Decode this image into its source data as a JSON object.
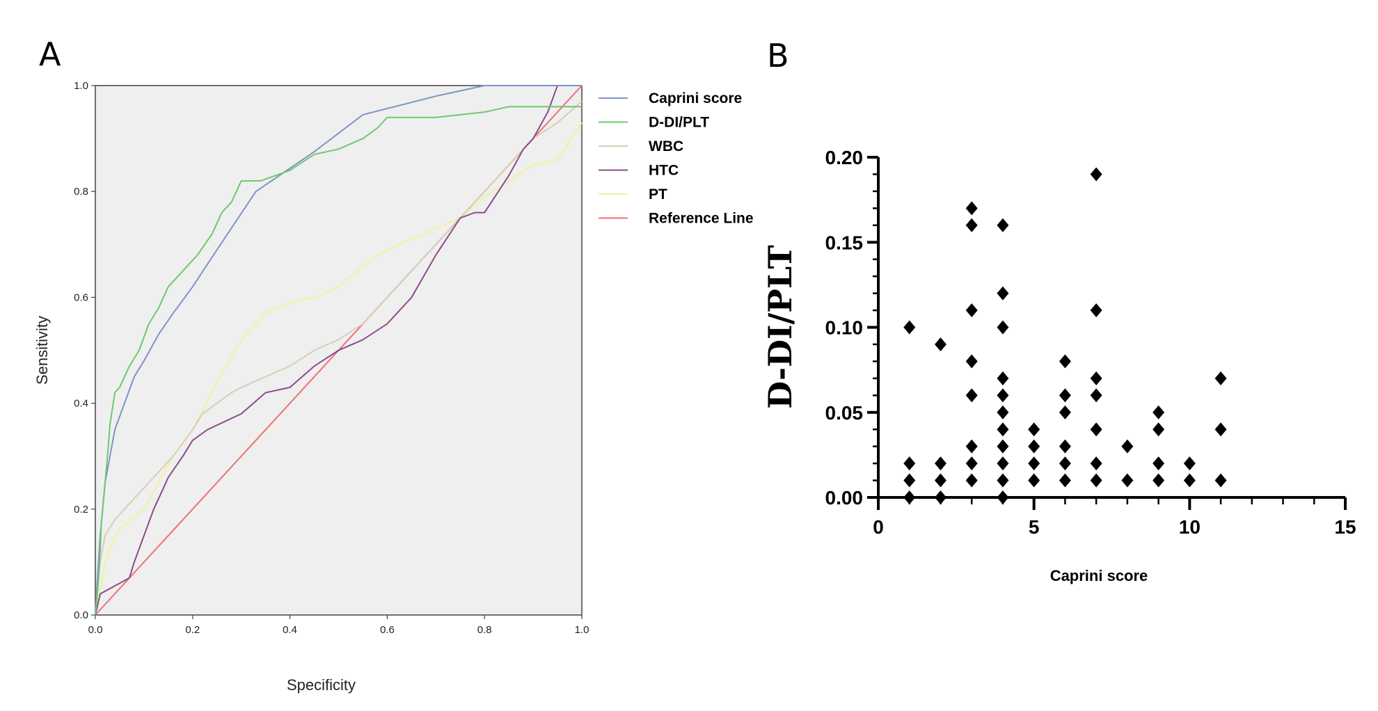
{
  "panel_a_label": "A",
  "panel_b_label": "B",
  "chart_data": [
    {
      "type": "line",
      "title": "",
      "xlabel": "Specificity",
      "ylabel": "Sensitivity",
      "xlim": [
        0,
        1
      ],
      "ylim": [
        0,
        1
      ],
      "x_ticks": [
        0,
        0.2,
        0.4,
        0.6,
        0.8,
        1.0
      ],
      "x_tick_labels": [
        "0.0",
        "0.2",
        "0.4",
        "0.6",
        "0.8",
        "1.0"
      ],
      "y_ticks": [
        0,
        0.2,
        0.4,
        0.6,
        0.8,
        1.0
      ],
      "y_tick_labels": [
        "0.0",
        "0.2",
        "0.4",
        "0.6",
        "0.8",
        "1.0"
      ],
      "background": "#efefef",
      "legend_position": "right",
      "series": [
        {
          "name": "Caprini score",
          "color": "#7d93c8",
          "x": [
            0,
            0.005,
            0.01,
            0.015,
            0.02,
            0.03,
            0.04,
            0.06,
            0.08,
            0.1,
            0.13,
            0.16,
            0.2,
            0.25,
            0.33,
            0.45,
            0.55,
            0.7,
            0.8,
            0.9,
            0.95,
            1.0
          ],
          "y": [
            0,
            0.08,
            0.15,
            0.2,
            0.25,
            0.3,
            0.35,
            0.4,
            0.45,
            0.48,
            0.53,
            0.57,
            0.62,
            0.69,
            0.8,
            0.875,
            0.945,
            0.98,
            1.0,
            1.0,
            1.0,
            1.0
          ]
        },
        {
          "name": "D-DI/PLT",
          "color": "#6ec86e",
          "x": [
            0,
            0.005,
            0.01,
            0.012,
            0.02,
            0.025,
            0.03,
            0.04,
            0.05,
            0.07,
            0.09,
            0.11,
            0.13,
            0.15,
            0.17,
            0.19,
            0.21,
            0.24,
            0.26,
            0.28,
            0.3,
            0.34,
            0.4,
            0.45,
            0.5,
            0.55,
            0.58,
            0.6,
            0.7,
            0.8,
            0.85,
            0.9,
            0.95,
            1.0
          ],
          "y": [
            0,
            0.05,
            0.12,
            0.17,
            0.25,
            0.3,
            0.36,
            0.42,
            0.43,
            0.47,
            0.5,
            0.55,
            0.58,
            0.62,
            0.64,
            0.66,
            0.68,
            0.72,
            0.76,
            0.78,
            0.82,
            0.82,
            0.84,
            0.87,
            0.88,
            0.9,
            0.92,
            0.94,
            0.94,
            0.95,
            0.96,
            0.96,
            0.96,
            0.96
          ]
        },
        {
          "name": "WBC",
          "color": "#d6cfb3",
          "x": [
            0,
            0.01,
            0.02,
            0.04,
            0.06,
            0.08,
            0.1,
            0.12,
            0.14,
            0.16,
            0.2,
            0.22,
            0.25,
            0.28,
            0.3,
            0.35,
            0.4,
            0.45,
            0.5,
            0.55,
            0.6,
            0.65,
            0.7,
            0.75,
            0.8,
            0.85,
            0.9,
            0.95,
            1.0
          ],
          "y": [
            0,
            0.1,
            0.15,
            0.18,
            0.2,
            0.22,
            0.24,
            0.26,
            0.28,
            0.3,
            0.35,
            0.38,
            0.4,
            0.42,
            0.43,
            0.45,
            0.47,
            0.5,
            0.52,
            0.55,
            0.6,
            0.65,
            0.7,
            0.75,
            0.8,
            0.85,
            0.9,
            0.93,
            0.97
          ]
        },
        {
          "name": "HTC",
          "color": "#8a4c8a",
          "x": [
            0,
            0.01,
            0.03,
            0.07,
            0.08,
            0.1,
            0.12,
            0.14,
            0.15,
            0.18,
            0.2,
            0.23,
            0.3,
            0.35,
            0.4,
            0.45,
            0.5,
            0.55,
            0.6,
            0.65,
            0.7,
            0.75,
            0.78,
            0.8,
            0.85,
            0.88,
            0.9,
            0.93,
            0.95,
            1.0
          ],
          "y": [
            0,
            0.04,
            0.05,
            0.07,
            0.1,
            0.15,
            0.2,
            0.24,
            0.26,
            0.3,
            0.33,
            0.35,
            0.38,
            0.42,
            0.43,
            0.47,
            0.5,
            0.52,
            0.55,
            0.6,
            0.68,
            0.75,
            0.76,
            0.76,
            0.83,
            0.88,
            0.9,
            0.95,
            1.0,
            1.0
          ]
        },
        {
          "name": "PT",
          "color": "#f2f29a",
          "x": [
            0,
            0.01,
            0.02,
            0.04,
            0.06,
            0.1,
            0.13,
            0.16,
            0.2,
            0.25,
            0.3,
            0.35,
            0.4,
            0.45,
            0.5,
            0.55,
            0.6,
            0.65,
            0.7,
            0.75,
            0.8,
            0.85,
            0.9,
            0.95,
            1.0
          ],
          "y": [
            0,
            0.05,
            0.1,
            0.15,
            0.17,
            0.2,
            0.25,
            0.3,
            0.35,
            0.44,
            0.52,
            0.57,
            0.59,
            0.6,
            0.62,
            0.66,
            0.69,
            0.71,
            0.73,
            0.75,
            0.79,
            0.82,
            0.85,
            0.86,
            0.93
          ]
        },
        {
          "name": "Reference Line",
          "color": "#f07070",
          "x": [
            0,
            1
          ],
          "y": [
            0,
            1
          ]
        }
      ]
    },
    {
      "type": "scatter",
      "title": "",
      "xlabel": "Caprini score",
      "ylabel": "D-DI/PLT",
      "xlim": [
        0,
        15
      ],
      "ylim": [
        0,
        0.2
      ],
      "x_ticks": [
        0,
        5,
        10,
        15
      ],
      "x_tick_labels": [
        "0",
        "5",
        "10",
        "15"
      ],
      "y_ticks": [
        0,
        0.05,
        0.1,
        0.15,
        0.2
      ],
      "y_tick_labels": [
        "0.00",
        "0.05",
        "0.10",
        "0.15",
        "0.20"
      ],
      "marker": "diamond",
      "color": "#000000",
      "points": [
        [
          1,
          0.0
        ],
        [
          1,
          0.01
        ],
        [
          1,
          0.02
        ],
        [
          1,
          0.1
        ],
        [
          2,
          0.0
        ],
        [
          2,
          0.01
        ],
        [
          2,
          0.02
        ],
        [
          2,
          0.09
        ],
        [
          3,
          0.01
        ],
        [
          3,
          0.02
        ],
        [
          3,
          0.03
        ],
        [
          3,
          0.06
        ],
        [
          3,
          0.08
        ],
        [
          3,
          0.11
        ],
        [
          3,
          0.16
        ],
        [
          3,
          0.17
        ],
        [
          4,
          0.0
        ],
        [
          4,
          0.01
        ],
        [
          4,
          0.02
        ],
        [
          4,
          0.03
        ],
        [
          4,
          0.04
        ],
        [
          4,
          0.05
        ],
        [
          4,
          0.06
        ],
        [
          4,
          0.07
        ],
        [
          4,
          0.1
        ],
        [
          4,
          0.12
        ],
        [
          4,
          0.16
        ],
        [
          5,
          0.01
        ],
        [
          5,
          0.02
        ],
        [
          5,
          0.03
        ],
        [
          5,
          0.04
        ],
        [
          6,
          0.01
        ],
        [
          6,
          0.02
        ],
        [
          6,
          0.03
        ],
        [
          6,
          0.05
        ],
        [
          6,
          0.06
        ],
        [
          6,
          0.08
        ],
        [
          7,
          0.01
        ],
        [
          7,
          0.02
        ],
        [
          7,
          0.04
        ],
        [
          7,
          0.06
        ],
        [
          7,
          0.07
        ],
        [
          7,
          0.11
        ],
        [
          7,
          0.19
        ],
        [
          8,
          0.01
        ],
        [
          8,
          0.03
        ],
        [
          9,
          0.01
        ],
        [
          9,
          0.02
        ],
        [
          9,
          0.04
        ],
        [
          9,
          0.05
        ],
        [
          10,
          0.01
        ],
        [
          10,
          0.02
        ],
        [
          11,
          0.01
        ],
        [
          11,
          0.04
        ],
        [
          11,
          0.07
        ]
      ]
    }
  ]
}
